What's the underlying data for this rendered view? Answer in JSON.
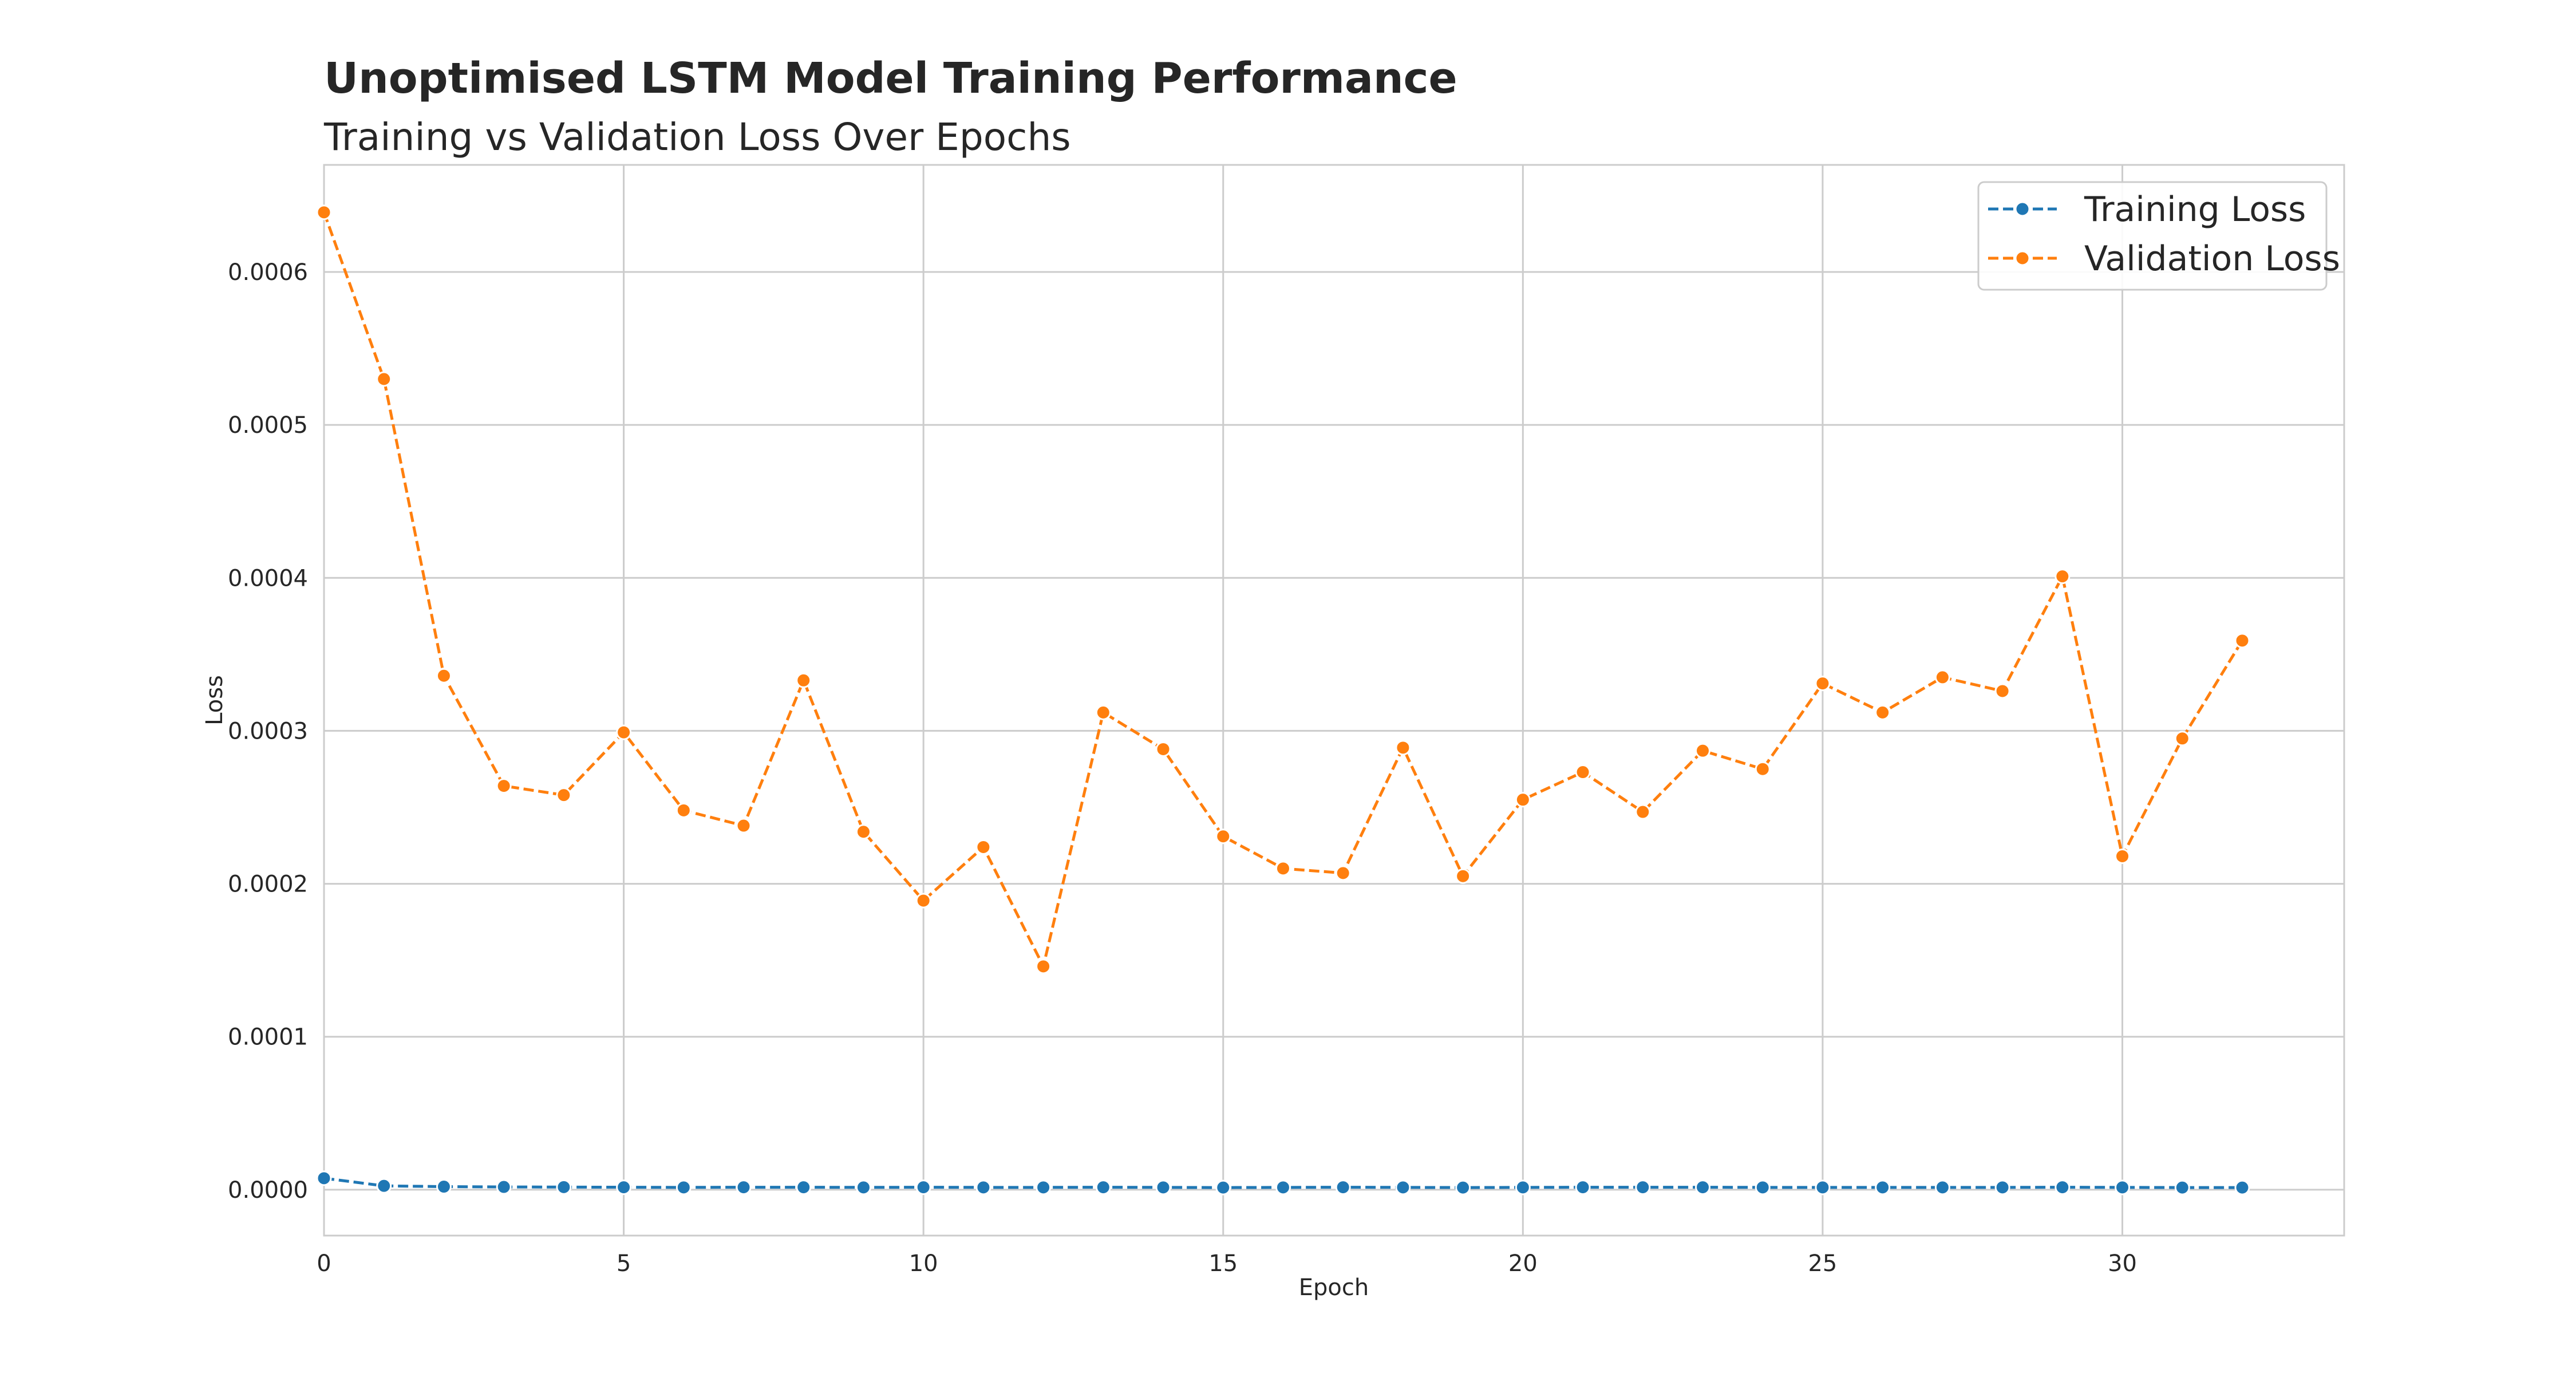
{
  "chart_data": {
    "type": "line",
    "title": "Unoptimised LSTM Model Training Performance",
    "subtitle": "Training vs Validation Loss Over Epochs",
    "xlabel": "Epoch",
    "ylabel": "Loss",
    "xlim": [
      0,
      33.7
    ],
    "ylim": [
      -3e-05,
      0.00067
    ],
    "xticks": [
      0,
      5,
      10,
      15,
      20,
      25,
      30
    ],
    "yticks": [
      0.0,
      0.0001,
      0.0002,
      0.0003,
      0.0004,
      0.0005,
      0.0006
    ],
    "ytick_labels": [
      "0.0000",
      "0.0001",
      "0.0002",
      "0.0003",
      "0.0004",
      "0.0005",
      "0.0006"
    ],
    "grid": true,
    "legend_position": "top-right",
    "x": [
      0,
      1,
      2,
      3,
      4,
      5,
      6,
      7,
      8,
      9,
      10,
      11,
      12,
      13,
      14,
      15,
      16,
      17,
      18,
      19,
      20,
      21,
      22,
      23,
      24,
      25,
      26,
      27,
      28,
      29,
      30,
      31,
      32
    ],
    "series": [
      {
        "name": "Training Loss",
        "color": "#1f77b4",
        "values": [
          7.5e-06,
          2.5e-06,
          2e-06,
          1.8e-06,
          1.7e-06,
          1.6e-06,
          1.5e-06,
          1.6e-06,
          1.6e-06,
          1.5e-06,
          1.6e-06,
          1.5e-06,
          1.5e-06,
          1.6e-06,
          1.5e-06,
          1.4e-06,
          1.5e-06,
          1.6e-06,
          1.5e-06,
          1.4e-06,
          1.5e-06,
          1.6e-06,
          1.6e-06,
          1.6e-06,
          1.5e-06,
          1.5e-06,
          1.5e-06,
          1.5e-06,
          1.5e-06,
          1.6e-06,
          1.5e-06,
          1.4e-06,
          1.4e-06
        ]
      },
      {
        "name": "Validation Loss",
        "color": "#ff7f0e",
        "values": [
          0.000639,
          0.00053,
          0.000336,
          0.000264,
          0.000258,
          0.000299,
          0.000248,
          0.000238,
          0.000333,
          0.000234,
          0.000189,
          0.000224,
          0.000146,
          0.000312,
          0.000288,
          0.000231,
          0.00021,
          0.000207,
          0.000289,
          0.000205,
          0.000255,
          0.000273,
          0.000247,
          0.000287,
          0.000275,
          0.000331,
          0.000312,
          0.000335,
          0.000326,
          0.000401,
          0.000218,
          0.000295,
          0.000359
        ]
      }
    ]
  }
}
